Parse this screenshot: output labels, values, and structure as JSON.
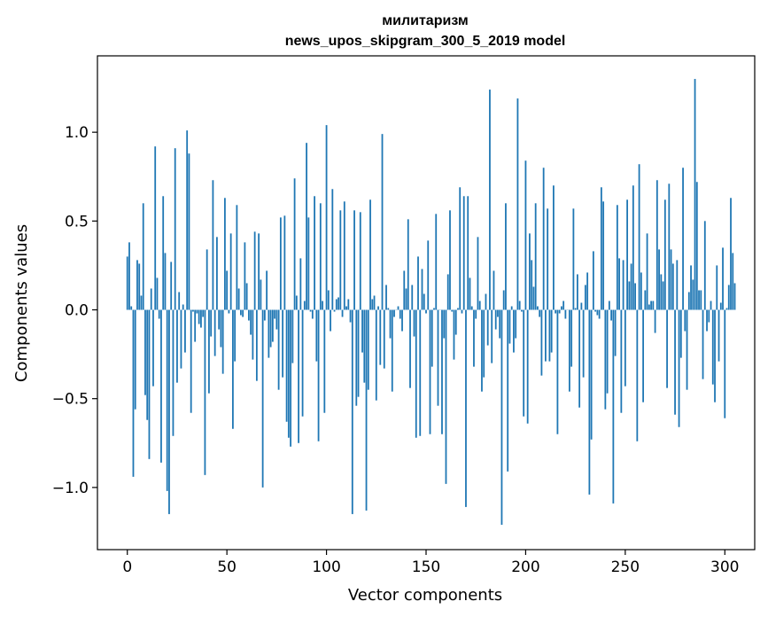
{
  "chart_data": {
    "type": "bar",
    "title": "милитаризм",
    "subtitle": "news_upos_skipgram_300_5_2019 model",
    "xlabel": "Vector components",
    "ylabel": "Components values",
    "xlim": [
      -15,
      315
    ],
    "ylim": [
      -1.35,
      1.43
    ],
    "x_ticks": [
      0,
      50,
      100,
      150,
      200,
      250,
      300
    ],
    "x_tick_labels": [
      "0",
      "50",
      "100",
      "150",
      "200",
      "250",
      "300"
    ],
    "y_ticks": [
      -1.0,
      -0.5,
      0.0,
      0.5,
      1.0
    ],
    "y_tick_labels": [
      "−1.0",
      "−0.5",
      "0.0",
      "0.5",
      "1.0"
    ],
    "grid": false,
    "bar_color": "#1f77b4",
    "values": [
      0.3,
      0.38,
      0.02,
      -0.94,
      -0.56,
      0.28,
      0.26,
      0.08,
      0.6,
      -0.48,
      -0.62,
      -0.84,
      0.12,
      -0.43,
      0.92,
      0.18,
      -0.05,
      -0.86,
      0.64,
      0.32,
      -1.02,
      -1.15,
      0.27,
      -0.71,
      0.91,
      -0.41,
      0.1,
      -0.33,
      0.03,
      -0.24,
      1.01,
      0.88,
      -0.58,
      -0.01,
      -0.18,
      -0.02,
      -0.08,
      -0.1,
      -0.04,
      -0.93,
      0.34,
      -0.47,
      -0.15,
      0.73,
      -0.26,
      0.41,
      -0.11,
      -0.21,
      -0.36,
      0.63,
      0.22,
      -0.02,
      0.43,
      -0.67,
      -0.29,
      0.59,
      0.12,
      -0.03,
      -0.04,
      0.38,
      0.15,
      -0.06,
      -0.14,
      -0.28,
      0.44,
      -0.4,
      0.43,
      0.17,
      -1.0,
      -0.06,
      0.22,
      -0.27,
      -0.21,
      -0.18,
      -0.05,
      -0.11,
      -0.45,
      0.52,
      -0.38,
      0.53,
      -0.63,
      -0.72,
      -0.77,
      -0.3,
      0.74,
      0.08,
      -0.75,
      0.29,
      -0.6,
      0.05,
      0.94,
      0.52,
      -0.01,
      -0.05,
      0.64,
      -0.29,
      -0.74,
      0.6,
      0.05,
      -0.58,
      1.04,
      0.11,
      -0.12,
      0.68,
      -0.01,
      0.06,
      0.07,
      0.56,
      -0.04,
      0.61,
      0.02,
      0.06,
      -0.07,
      -1.15,
      0.56,
      -0.54,
      -0.49,
      0.55,
      -0.24,
      -0.41,
      -1.13,
      -0.45,
      0.62,
      0.06,
      0.08,
      -0.51,
      0.02,
      -0.31,
      0.99,
      -0.33,
      0.14,
      0.01,
      -0.16,
      -0.46,
      -0.04,
      0.0,
      0.02,
      -0.05,
      -0.12,
      0.22,
      0.12,
      0.51,
      -0.44,
      0.14,
      -0.15,
      -0.72,
      0.3,
      -0.71,
      0.23,
      0.09,
      -0.02,
      0.39,
      -0.7,
      -0.32,
      0.01,
      0.54,
      -0.54,
      0.0,
      -0.7,
      -0.16,
      -0.98,
      0.2,
      0.56,
      -0.01,
      -0.28,
      -0.14,
      0.01,
      0.69,
      -0.02,
      0.64,
      -1.11,
      0.64,
      0.18,
      0.02,
      -0.32,
      -0.05,
      0.41,
      0.05,
      -0.46,
      -0.38,
      0.09,
      -0.2,
      1.24,
      -0.3,
      0.22,
      -0.11,
      -0.04,
      -0.16,
      -1.21,
      0.11,
      0.6,
      -0.91,
      -0.19,
      0.02,
      -0.24,
      -0.16,
      1.19,
      0.05,
      -0.01,
      -0.6,
      0.84,
      -0.64,
      0.43,
      0.28,
      0.13,
      0.6,
      0.02,
      -0.04,
      -0.37,
      0.8,
      -0.29,
      0.57,
      -0.29,
      -0.24,
      0.7,
      -0.02,
      -0.7,
      -0.02,
      0.02,
      0.05,
      -0.05,
      0.0,
      -0.46,
      -0.32,
      0.57,
      0.01,
      0.2,
      -0.55,
      0.04,
      -0.38,
      0.14,
      0.21,
      -1.04,
      -0.73,
      0.33,
      -0.01,
      -0.03,
      -0.05,
      0.69,
      0.61,
      -0.56,
      -0.47,
      0.05,
      -0.06,
      -1.09,
      -0.26,
      0.59,
      0.29,
      -0.58,
      0.28,
      -0.43,
      0.62,
      0.16,
      0.26,
      0.7,
      0.15,
      -0.74,
      0.82,
      0.21,
      -0.52,
      0.11,
      0.43,
      0.03,
      0.05,
      0.05,
      -0.13,
      0.73,
      0.34,
      0.2,
      0.16,
      0.62,
      -0.44,
      0.71,
      0.34,
      0.26,
      -0.59,
      0.28,
      -0.66,
      -0.27,
      0.8,
      -0.12,
      -0.45,
      0.1,
      0.25,
      0.17,
      1.3,
      0.72,
      0.11,
      0.11,
      -0.39,
      0.5,
      -0.12,
      -0.07,
      0.05,
      -0.42,
      -0.52,
      0.25,
      -0.29,
      0.04,
      0.35,
      -0.61,
      0.01,
      0.14,
      0.63,
      0.32,
      0.15
    ]
  }
}
